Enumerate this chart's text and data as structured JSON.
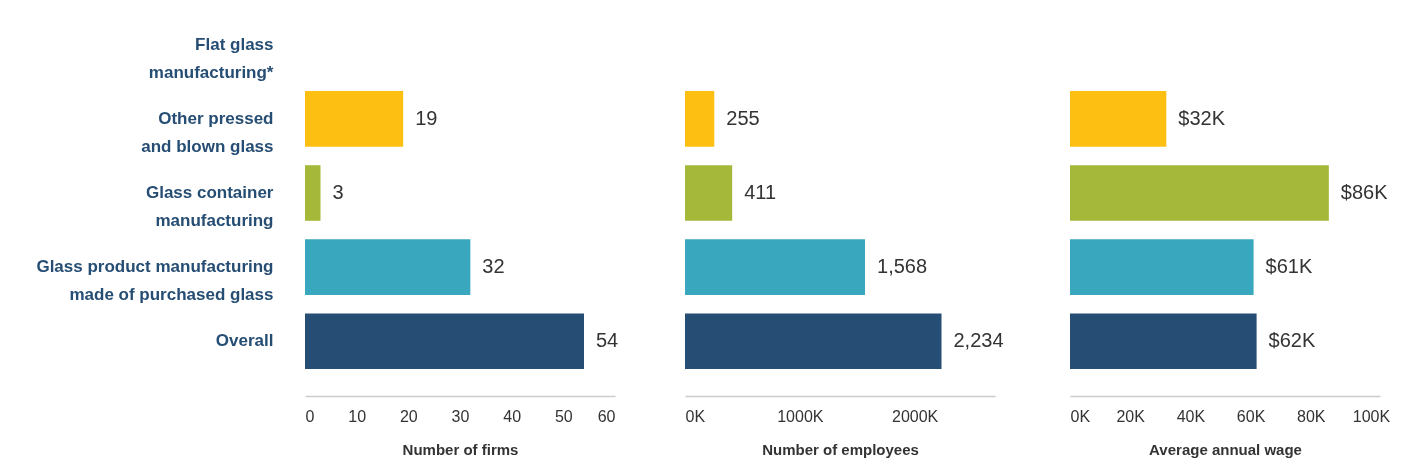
{
  "chart_data": [
    {
      "type": "bar",
      "orientation": "horizontal",
      "categories": [
        "Flat glass manufacturing*",
        "Other pressed and blown glass",
        "Glass container manufacturing",
        "Glass product manufacturing made of purchased glass",
        "Overall"
      ],
      "values": [
        null,
        19,
        3,
        32,
        54
      ],
      "colors": [
        null,
        "#fdbf11",
        "#a5b83a",
        "#39a7bd",
        "#264d73"
      ],
      "xlabel": "Number of firms",
      "xlim": [
        0,
        60
      ],
      "xticks": [
        0,
        10,
        20,
        30,
        40,
        50,
        60
      ],
      "data_labels": true
    },
    {
      "type": "bar",
      "orientation": "horizontal",
      "categories": [
        null,
        null,
        null,
        null,
        null
      ],
      "values": [
        null,
        255,
        411,
        1568,
        2234
      ],
      "value_labels": [
        null,
        "255",
        "411",
        "1,568",
        "2,234"
      ],
      "colors": [
        null,
        "#fdbf11",
        "#a5b83a",
        "#39a7bd",
        "#264d73"
      ],
      "xlabel": "Number of employees",
      "xlim": [
        0,
        2700
      ],
      "xticks": [
        {
          "value": 0,
          "label": "0K"
        },
        {
          "value": 1000,
          "label": "1000K"
        },
        {
          "value": 2000,
          "label": "2000K"
        }
      ],
      "tick_labels": "x"
    },
    {
      "type": "bar",
      "orientation": "horizontal",
      "categories": [
        null,
        null,
        null,
        null,
        null
      ],
      "values": [
        null,
        32,
        86,
        61,
        62
      ],
      "value_labels": [
        null,
        "$32K",
        "$86K",
        "$61K",
        "$62K"
      ],
      "colors": [
        null,
        "#fdbf11",
        "#a5b83a",
        "#39a7bd",
        "#264d73"
      ],
      "xlabel": "Average annual wage",
      "xlim": [
        0,
        103
      ],
      "xticks": [
        {
          "value": 0,
          "label": "0K"
        },
        {
          "value": 20,
          "label": "20K"
        },
        {
          "value": 40,
          "label": "40K"
        },
        {
          "value": 60,
          "label": "60K"
        },
        {
          "value": 80,
          "label": "80K"
        },
        {
          "value": 100,
          "label": "100K"
        }
      ],
      "tick_labels": "x"
    }
  ]
}
